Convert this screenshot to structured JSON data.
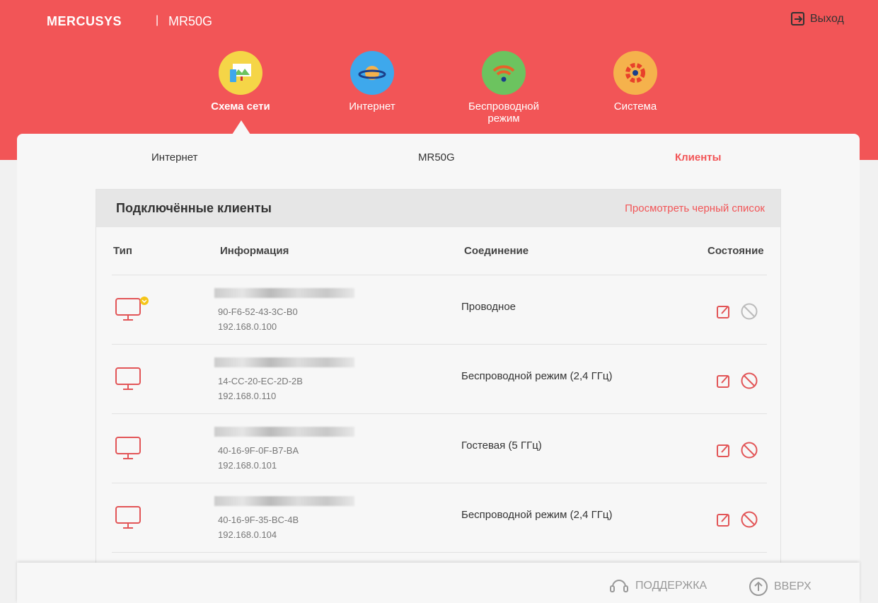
{
  "header": {
    "brand": "MERCUSYS",
    "separator": "|",
    "model": "MR50G",
    "logout": "Выход"
  },
  "nav": [
    {
      "label": "Схема сети",
      "color": "#f5d547",
      "active": true
    },
    {
      "label": "Интернет",
      "color": "#3ea8ec"
    },
    {
      "label": "Беспроводной режим",
      "color": "#6cc35f"
    },
    {
      "label": "Система",
      "color": "#f5b24c"
    }
  ],
  "subnav": {
    "internet": "Интернет",
    "router": "MR50G",
    "clients": "Клиенты"
  },
  "panel": {
    "title": "Подключённые клиенты",
    "blacklist_link": "Просмотреть черный список",
    "columns": {
      "type": "Тип",
      "info": "Информация",
      "connection": "Соединение",
      "status": "Состояние"
    },
    "clients": [
      {
        "mac": "90-F6-52-43-3C-B0",
        "ip": "192.168.0.100",
        "connection": "Проводное",
        "is_self": true
      },
      {
        "mac": "14-CC-20-EC-2D-2B",
        "ip": "192.168.0.110",
        "connection": "Беспроводной режим (2,4 ГГц)"
      },
      {
        "mac": "40-16-9F-0F-B7-BA",
        "ip": "192.168.0.101",
        "connection": "Гостевая (5 ГГц)"
      },
      {
        "mac": "40-16-9F-35-BC-4B",
        "ip": "192.168.0.104",
        "connection": "Беспроводной режим (2,4 ГГц)"
      }
    ]
  },
  "footer": {
    "support": "ПОДДЕРЖКА",
    "top": "ВВЕРХ"
  },
  "colors": {
    "accent": "#f25557"
  }
}
